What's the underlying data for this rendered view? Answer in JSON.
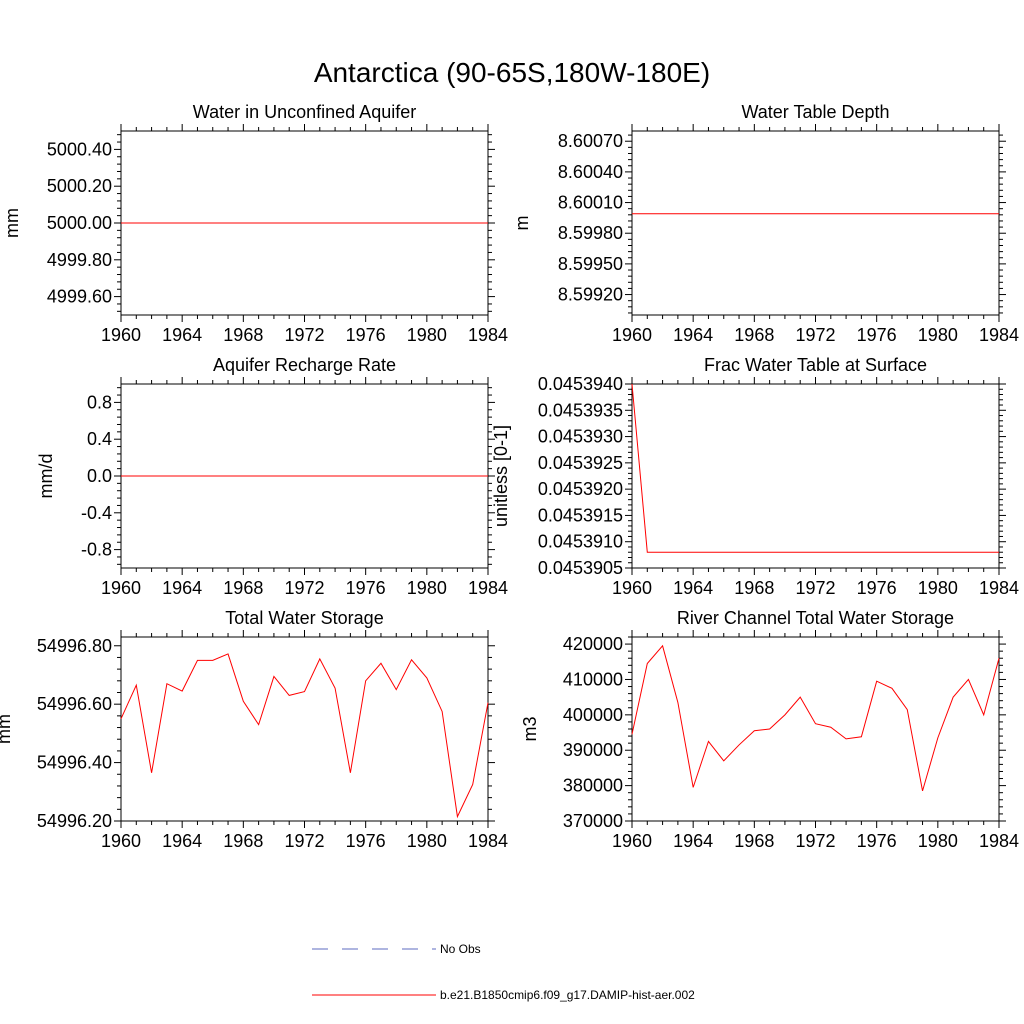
{
  "title": "Antarctica (90-65S,180W-180E)",
  "colors": {
    "model": "#ff0000",
    "obs": "#5c6bc0",
    "frame": "#000000"
  },
  "legend": {
    "placement": "bottom-center",
    "entries": [
      {
        "label": "No Obs",
        "style": "dashed",
        "color": "#5c6bc0"
      },
      {
        "label": "b.e21.B1850cmip6.f09_g17.DAMIP-hist-aer.002",
        "style": "solid",
        "color": "#ff0000"
      }
    ]
  },
  "chart_data": [
    {
      "type": "line",
      "title": "Water in Unconfined Aquifer",
      "ylabel": "mm",
      "xlim": [
        1960,
        1984
      ],
      "ylim": [
        4999.5,
        5000.5
      ],
      "xticks": [
        1960,
        1964,
        1968,
        1972,
        1976,
        1980,
        1984
      ],
      "yticks": [
        4999.6,
        4999.8,
        5000.0,
        5000.2,
        5000.4
      ],
      "ytick_labels": [
        "4999.60",
        "4999.80",
        "5000.00",
        "5000.20",
        "5000.40"
      ],
      "grid": false,
      "series": [
        {
          "name": "b.e21.B1850cmip6.f09_g17.DAMIP-hist-aer.002",
          "x": [
            1960,
            1961,
            1962,
            1963,
            1964,
            1965,
            1966,
            1967,
            1968,
            1969,
            1970,
            1971,
            1972,
            1973,
            1974,
            1975,
            1976,
            1977,
            1978,
            1979,
            1980,
            1981,
            1982,
            1983,
            1984
          ],
          "values": [
            5000,
            5000,
            5000,
            5000,
            5000,
            5000,
            5000,
            5000,
            5000,
            5000,
            5000,
            5000,
            5000,
            5000,
            5000,
            5000,
            5000,
            5000,
            5000,
            5000,
            5000,
            5000,
            5000,
            5000,
            5000
          ]
        }
      ]
    },
    {
      "type": "line",
      "title": "Water Table Depth",
      "ylabel": "m",
      "xlim": [
        1960,
        1984
      ],
      "ylim": [
        8.599,
        8.6008
      ],
      "xticks": [
        1960,
        1964,
        1968,
        1972,
        1976,
        1980,
        1984
      ],
      "yticks": [
        8.5992,
        8.5995,
        8.5998,
        8.6001,
        8.6004,
        8.6007
      ],
      "ytick_labels": [
        "8.59920",
        "8.59950",
        "8.59980",
        "8.60010",
        "8.60040",
        "8.60070"
      ],
      "grid": false,
      "series": [
        {
          "name": "b.e21.B1850cmip6.f09_g17.DAMIP-hist-aer.002",
          "x": [
            1960,
            1961,
            1962,
            1963,
            1964,
            1965,
            1966,
            1967,
            1968,
            1969,
            1970,
            1971,
            1972,
            1973,
            1974,
            1975,
            1976,
            1977,
            1978,
            1979,
            1980,
            1981,
            1982,
            1983,
            1984
          ],
          "values": [
            8.59999,
            8.59999,
            8.59999,
            8.59999,
            8.59999,
            8.59999,
            8.59999,
            8.59999,
            8.59999,
            8.59999,
            8.59999,
            8.59999,
            8.59999,
            8.59999,
            8.59999,
            8.59999,
            8.59999,
            8.59999,
            8.59999,
            8.59999,
            8.59999,
            8.59999,
            8.59999,
            8.59999,
            8.59999
          ]
        }
      ]
    },
    {
      "type": "line",
      "title": "Aquifer Recharge Rate",
      "ylabel": "mm/d",
      "xlim": [
        1960,
        1984
      ],
      "ylim": [
        -1,
        1
      ],
      "xticks": [
        1960,
        1964,
        1968,
        1972,
        1976,
        1980,
        1984
      ],
      "yticks": [
        -0.8,
        -0.4,
        0.0,
        0.4,
        0.8
      ],
      "ytick_labels": [
        "-0.8",
        "-0.4",
        "0.0",
        "0.4",
        "0.8"
      ],
      "grid": false,
      "series": [
        {
          "name": "b.e21.B1850cmip6.f09_g17.DAMIP-hist-aer.002",
          "x": [
            1960,
            1961,
            1962,
            1963,
            1964,
            1965,
            1966,
            1967,
            1968,
            1969,
            1970,
            1971,
            1972,
            1973,
            1974,
            1975,
            1976,
            1977,
            1978,
            1979,
            1980,
            1981,
            1982,
            1983,
            1984
          ],
          "values": [
            0,
            0,
            0,
            0,
            0,
            0,
            0,
            0,
            0,
            0,
            0,
            0,
            0,
            0,
            0,
            0,
            0,
            0,
            0,
            0,
            0,
            0,
            0,
            0,
            0
          ]
        }
      ]
    },
    {
      "type": "line",
      "title": "Frac Water Table at Surface",
      "ylabel": "unitless [0-1]",
      "xlim": [
        1960,
        1984
      ],
      "ylim": [
        0.0453905,
        0.045394
      ],
      "xticks": [
        1960,
        1964,
        1968,
        1972,
        1976,
        1980,
        1984
      ],
      "yticks": [
        0.0453905,
        0.045391,
        0.0453915,
        0.045392,
        0.0453925,
        0.045393,
        0.0453935,
        0.045394
      ],
      "ytick_labels": [
        "0.0453905",
        "0.0453910",
        "0.0453915",
        "0.0453920",
        "0.0453925",
        "0.0453930",
        "0.0453935",
        "0.0453940"
      ],
      "grid": false,
      "series": [
        {
          "name": "b.e21.B1850cmip6.f09_g17.DAMIP-hist-aer.002",
          "x": [
            1960,
            1961,
            1962,
            1963,
            1964,
            1965,
            1966,
            1967,
            1968,
            1969,
            1970,
            1971,
            1972,
            1973,
            1974,
            1975,
            1976,
            1977,
            1978,
            1979,
            1980,
            1981,
            1982,
            1983,
            1984
          ],
          "values": [
            0.045394,
            0.0453908,
            0.0453908,
            0.0453908,
            0.0453908,
            0.0453908,
            0.0453908,
            0.0453908,
            0.0453908,
            0.0453908,
            0.0453908,
            0.0453908,
            0.0453908,
            0.0453908,
            0.0453908,
            0.0453908,
            0.0453908,
            0.0453908,
            0.0453908,
            0.0453908,
            0.0453908,
            0.0453908,
            0.0453908,
            0.0453908,
            0.0453908
          ]
        }
      ]
    },
    {
      "type": "line",
      "title": "Total Water Storage",
      "ylabel": "mm",
      "xlim": [
        1960,
        1984
      ],
      "ylim": [
        54996.2,
        54996.83
      ],
      "xticks": [
        1960,
        1964,
        1968,
        1972,
        1976,
        1980,
        1984
      ],
      "yticks": [
        54996.2,
        54996.4,
        54996.6,
        54996.8
      ],
      "ytick_labels": [
        "54996.20",
        "54996.40",
        "54996.60",
        "54996.80"
      ],
      "grid": false,
      "series": [
        {
          "name": "b.e21.B1850cmip6.f09_g17.DAMIP-hist-aer.002",
          "x": [
            1960,
            1961,
            1962,
            1963,
            1964,
            1965,
            1966,
            1967,
            1968,
            1969,
            1970,
            1971,
            1972,
            1973,
            1974,
            1975,
            1976,
            1977,
            1978,
            1979,
            1980,
            1981,
            1982,
            1983,
            1984
          ],
          "values": [
            54996.55,
            54996.665,
            54996.365,
            54996.67,
            54996.645,
            54996.75,
            54996.75,
            54996.772,
            54996.61,
            54996.53,
            54996.695,
            54996.63,
            54996.643,
            54996.755,
            54996.655,
            54996.365,
            54996.68,
            54996.74,
            54996.65,
            54996.752,
            54996.69,
            54996.575,
            54996.215,
            54996.325,
            54996.605
          ]
        }
      ]
    },
    {
      "type": "line",
      "title": "River Channel Total Water Storage",
      "ylabel": "m3",
      "xlim": [
        1960,
        1984
      ],
      "ylim": [
        370000,
        422000
      ],
      "xticks": [
        1960,
        1964,
        1968,
        1972,
        1976,
        1980,
        1984
      ],
      "yticks": [
        370000,
        380000,
        390000,
        400000,
        410000,
        420000
      ],
      "ytick_labels": [
        "370000",
        "380000",
        "390000",
        "400000",
        "410000",
        "420000"
      ],
      "grid": false,
      "series": [
        {
          "name": "b.e21.B1850cmip6.f09_g17.DAMIP-hist-aer.002",
          "x": [
            1960,
            1961,
            1962,
            1963,
            1964,
            1965,
            1966,
            1967,
            1968,
            1969,
            1970,
            1971,
            1972,
            1973,
            1974,
            1975,
            1976,
            1977,
            1978,
            1979,
            1980,
            1981,
            1982,
            1983,
            1984
          ],
          "values": [
            394500,
            414500,
            419500,
            403500,
            379500,
            392500,
            387000,
            391500,
            395500,
            396000,
            400000,
            405000,
            397500,
            396500,
            393200,
            393800,
            409500,
            407500,
            401500,
            378500,
            393500,
            405000,
            410000,
            400000,
            416000
          ]
        }
      ]
    }
  ]
}
